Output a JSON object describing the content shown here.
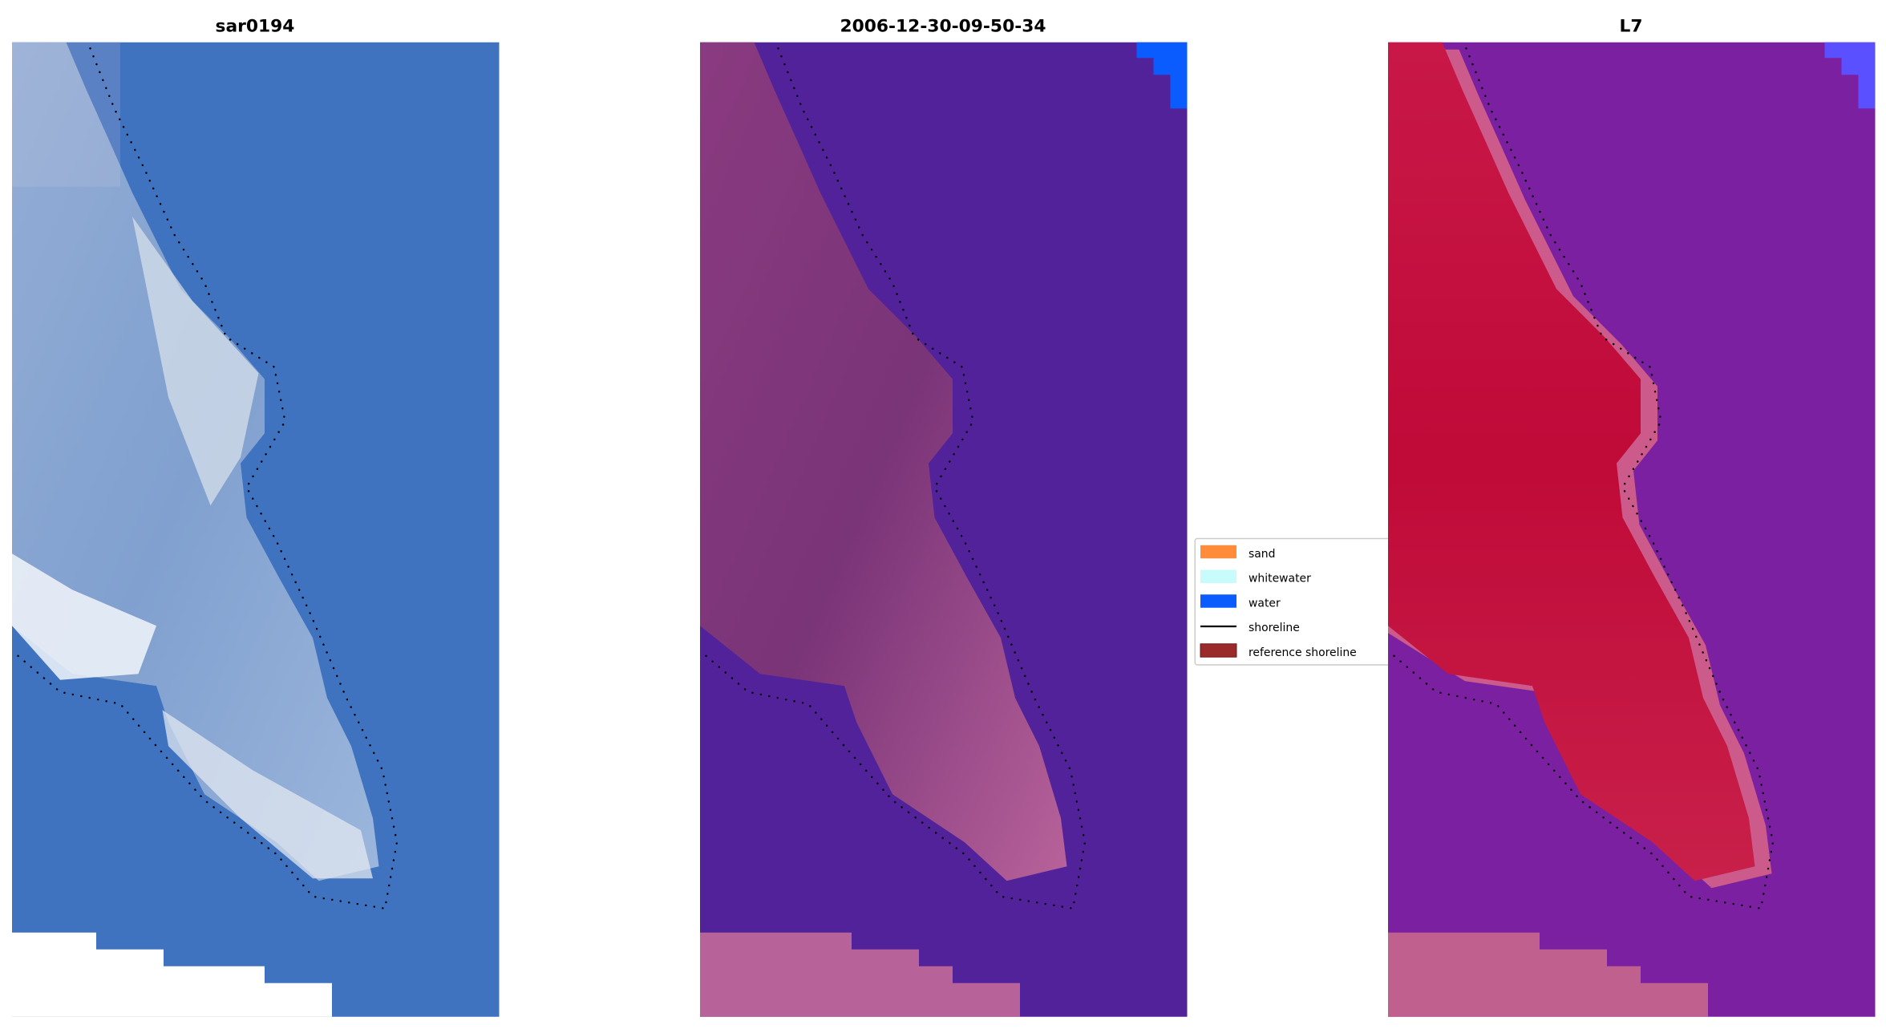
{
  "panels": [
    {
      "title": "sar0194"
    },
    {
      "title": "2006-12-30-09-50-34"
    },
    {
      "title": "L7"
    }
  ],
  "legend": {
    "items": [
      {
        "label": "sand",
        "color": "#ff8c3a",
        "kind": "patch"
      },
      {
        "label": "whitewater",
        "color": "#c8fcfc",
        "kind": "patch"
      },
      {
        "label": "water",
        "color": "#0a5cff",
        "kind": "patch"
      },
      {
        "label": "shoreline",
        "color": "#000000",
        "kind": "line"
      },
      {
        "label": "reference shoreline",
        "color": "#9b2b2b",
        "kind": "patch"
      }
    ]
  },
  "colors": {
    "rgb_water": "#3f72bf",
    "classified_water": "#52229a",
    "classified_sand": "#b8629a",
    "mndwi_land": "#c4103e",
    "mndwi_water": "#7a20a0"
  }
}
